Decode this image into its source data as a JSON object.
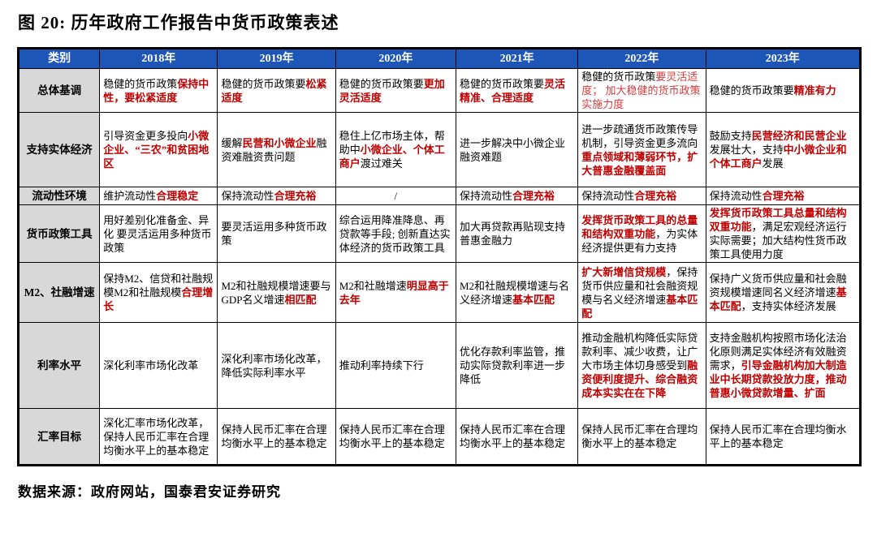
{
  "title": "图 20:  历年政府工作报告中货币政策表述",
  "footer": "数据来源：政府网站，国泰君安证券研究",
  "colors": {
    "header_bg": "#1e56b8",
    "header_text": "#ffffff",
    "row_label_bg": "#d8d8d8",
    "red_bold": "#c00000",
    "red_regular": "#d43c3c",
    "border": "#000000"
  },
  "table": {
    "header": [
      "类别",
      "2018年",
      "2019年",
      "2020年",
      "2021年",
      "2022年",
      "2023年"
    ],
    "rows": [
      {
        "label": "总体基调",
        "cells": [
          {
            "segs": [
              {
                "t": "稳健的货币政策",
                "s": "k"
              },
              {
                "t": "保持中性，要松紧适度",
                "s": "rb"
              }
            ]
          },
          {
            "segs": [
              {
                "t": "稳健的货币政策要",
                "s": "k"
              },
              {
                "t": "松紧适度",
                "s": "rb"
              }
            ]
          },
          {
            "segs": [
              {
                "t": "稳健的货币政策要",
                "s": "k"
              },
              {
                "t": "更加灵活适度",
                "s": "rb"
              }
            ]
          },
          {
            "segs": [
              {
                "t": "稳健的货币政策要",
                "s": "k"
              },
              {
                "t": "灵活精准、合理适度",
                "s": "rb"
              }
            ]
          },
          {
            "segs": [
              {
                "t": "稳健的货币政策",
                "s": "k"
              },
              {
                "t": "要灵活适度； 加大稳健的货币政策实施力度",
                "s": "r"
              }
            ]
          },
          {
            "segs": [
              {
                "t": "稳健的货币政策要",
                "s": "k"
              },
              {
                "t": "精准有力",
                "s": "rb"
              }
            ]
          }
        ]
      },
      {
        "label": "支持实体经济",
        "cells": [
          {
            "segs": [
              {
                "t": "引导资金更多投向",
                "s": "k"
              },
              {
                "t": "小微企业、“三农”和贫困地区",
                "s": "rb"
              }
            ]
          },
          {
            "segs": [
              {
                "t": "缓解",
                "s": "k"
              },
              {
                "t": "民营和小微企业",
                "s": "rb"
              },
              {
                "t": "融资难融资贵问题",
                "s": "k"
              }
            ]
          },
          {
            "segs": [
              {
                "t": "稳住上亿市场主体，帮助中",
                "s": "k"
              },
              {
                "t": "小微企业、个体工商户",
                "s": "rb"
              },
              {
                "t": "渡过难关",
                "s": "k"
              }
            ]
          },
          {
            "segs": [
              {
                "t": "进一步解决中小微企业融资难题",
                "s": "k"
              }
            ]
          },
          {
            "segs": [
              {
                "t": "进一步疏通货币政策传导机制，引导资金更多流向",
                "s": "k"
              },
              {
                "t": "重点领域和薄弱环节，扩大普惠金融覆盖面",
                "s": "rb"
              }
            ]
          },
          {
            "segs": [
              {
                "t": "鼓励支持",
                "s": "k"
              },
              {
                "t": "民营经济和民营企业",
                "s": "rb"
              },
              {
                "t": "发展壮大，支持",
                "s": "k"
              },
              {
                "t": "中小微企业和个体工商户",
                "s": "rb"
              },
              {
                "t": "发展",
                "s": "k"
              }
            ]
          }
        ]
      },
      {
        "label": "流动性环境",
        "cells": [
          {
            "segs": [
              {
                "t": "维护流动性",
                "s": "k"
              },
              {
                "t": "合理稳定",
                "s": "rb"
              }
            ]
          },
          {
            "segs": [
              {
                "t": "保持流动性",
                "s": "k"
              },
              {
                "t": "合理充裕",
                "s": "rb"
              }
            ]
          },
          {
            "segs": [
              {
                "t": "/",
                "s": "k"
              }
            ],
            "center": true
          },
          {
            "segs": [
              {
                "t": "保持流动性",
                "s": "k"
              },
              {
                "t": "合理充裕",
                "s": "rb"
              }
            ]
          },
          {
            "segs": [
              {
                "t": "保持流动性",
                "s": "k"
              },
              {
                "t": "合理充裕",
                "s": "rb"
              }
            ]
          },
          {
            "segs": [
              {
                "t": "保持流动性",
                "s": "k"
              },
              {
                "t": "合理充裕",
                "s": "rb"
              }
            ]
          }
        ]
      },
      {
        "label": "货币政策工具",
        "cells": [
          {
            "segs": [
              {
                "t": "用好差别化准备金、异化 要灵活运用多种货币政策",
                "s": "k"
              }
            ]
          },
          {
            "segs": [
              {
                "t": "要灵活运用多种货币政策",
                "s": "k"
              }
            ]
          },
          {
            "segs": [
              {
                "t": "综合运用降准降息、再贷款等手段; 创新直达实体经济的货币政策工具",
                "s": "k"
              }
            ]
          },
          {
            "segs": [
              {
                "t": "加大再贷款再贴现支持普惠金融力",
                "s": "k"
              }
            ]
          },
          {
            "segs": [
              {
                "t": "发挥货币政策工具的总量和结构双重功能",
                "s": "rb"
              },
              {
                "t": "，为实体经济提供更有力支持",
                "s": "k"
              }
            ]
          },
          {
            "segs": [
              {
                "t": "发挥货币政策工具总量和结构双重功能",
                "s": "rb"
              },
              {
                "t": "，满足宏观经济运行实际需要；加大结构性货币政策工具使用力度",
                "s": "k"
              }
            ]
          }
        ]
      },
      {
        "label": "M2、社融增速",
        "cells": [
          {
            "segs": [
              {
                "t": "保持M2、信贷和社融规模M2和社融规模",
                "s": "k"
              },
              {
                "t": "合理增长",
                "s": "rb"
              }
            ]
          },
          {
            "segs": [
              {
                "t": "M2和社融规模增速要与GDP名义增速",
                "s": "k"
              },
              {
                "t": "相匹配",
                "s": "rb"
              }
            ]
          },
          {
            "segs": [
              {
                "t": "M2和社融增速",
                "s": "k"
              },
              {
                "t": "明显高于去年",
                "s": "rb"
              }
            ]
          },
          {
            "segs": [
              {
                "t": "M2和社融规模增速与名义经济增速",
                "s": "k"
              },
              {
                "t": "基本匹配",
                "s": "rb"
              }
            ]
          },
          {
            "segs": [
              {
                "t": "扩大新增信贷规模",
                "s": "rb"
              },
              {
                "t": "，保持货币供应量和社会融资规模与名义经济增速",
                "s": "k"
              },
              {
                "t": "基本匹配",
                "s": "rb"
              }
            ]
          },
          {
            "segs": [
              {
                "t": "保持广义货币供应量和社会融资规模增速同名义经济增速",
                "s": "k"
              },
              {
                "t": "基本匹配",
                "s": "rb"
              },
              {
                "t": "，支持实体经济发展",
                "s": "k"
              }
            ]
          }
        ]
      },
      {
        "label": "利率水平",
        "cells": [
          {
            "segs": [
              {
                "t": "深化利率市场化改革",
                "s": "k"
              }
            ]
          },
          {
            "segs": [
              {
                "t": "深化利率市场化改革，降低实际利率水平",
                "s": "k"
              }
            ]
          },
          {
            "segs": [
              {
                "t": "推动利率持续下行",
                "s": "k"
              }
            ]
          },
          {
            "segs": [
              {
                "t": "优化存款利率监管，推动实际贷款利率进一步降低",
                "s": "k"
              }
            ]
          },
          {
            "segs": [
              {
                "t": "推动金融机构降低实际贷款利率、减少收费，让广大市场主体切身感受到",
                "s": "k"
              },
              {
                "t": "融资便利度提升、综合融资成本实实在在下降",
                "s": "rb"
              }
            ]
          },
          {
            "segs": [
              {
                "t": "支持金融机构按照市场化法治化原则满足实体经济有效融资需求，",
                "s": "k"
              },
              {
                "t": "引导金融机构加大制造业中长期贷款投放力度，推动普惠小微贷款增量、扩面",
                "s": "rb"
              }
            ]
          }
        ]
      },
      {
        "label": "汇率目标",
        "cells": [
          {
            "segs": [
              {
                "t": "深化汇率市场化改革，保持人民币汇率在合理均衡水平上的基本稳定",
                "s": "k"
              }
            ]
          },
          {
            "segs": [
              {
                "t": "保持人民币汇率在合理均衡水平上的基本稳定",
                "s": "k"
              }
            ]
          },
          {
            "segs": [
              {
                "t": "保持人民币汇率在合理均衡水平上的基本稳定",
                "s": "k"
              }
            ]
          },
          {
            "segs": [
              {
                "t": "保持人民币汇率在合理均衡水平上的基本稳定",
                "s": "k"
              }
            ]
          },
          {
            "segs": [
              {
                "t": "保持人民币汇率在合理均衡水平上的基本稳定",
                "s": "k"
              }
            ]
          },
          {
            "segs": [
              {
                "t": "保持人民币汇率在合理均衡水平上的基本稳定",
                "s": "k"
              }
            ]
          }
        ]
      }
    ]
  }
}
